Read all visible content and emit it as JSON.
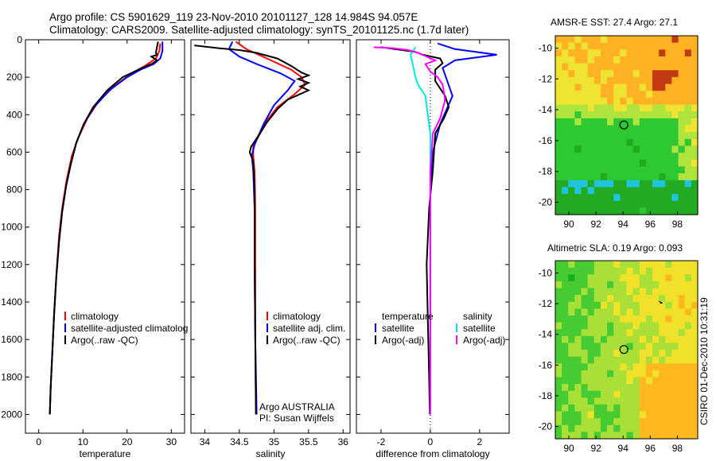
{
  "header": {
    "line1": "Argo profile: CS 5901629_119 23-Nov-2010 20101127_128 14.984S 94.057E",
    "line2": "Climatology: CARS2009. Satellite-adjusted climatology: synTS_20101125.nc (1.7d later)"
  },
  "footer": {
    "credit": "CSIRO 01-Dec-2010 10:31:19"
  },
  "colors": {
    "climatology": "#ff0000",
    "satellite": "#0000ff",
    "argo": "#000000",
    "argo_adj": "#ff00ff",
    "sat_diff": "#00e5e5"
  },
  "chart_data": [
    {
      "type": "line",
      "xlabel": "temperature",
      "ylabel": "",
      "xlim": [
        -3,
        33
      ],
      "ylim": [
        2100,
        0
      ],
      "xticks": [
        0,
        10,
        20,
        30
      ],
      "yticks": [
        0,
        200,
        400,
        600,
        800,
        1000,
        1200,
        1400,
        1600,
        1800,
        2000
      ],
      "legend": {
        "position": "lower-right",
        "entries": [
          {
            "label": "climatology",
            "color": "#ff0000"
          },
          {
            "label": "satellite-adjusted climatolog",
            "color": "#0000ff"
          },
          {
            "label": "Argo(..raw -QC)",
            "color": "#000000"
          }
        ]
      },
      "series": [
        {
          "color": "#ff0000",
          "points": [
            [
              27.5,
              20
            ],
            [
              27.3,
              60
            ],
            [
              26.5,
              100
            ],
            [
              24,
              140
            ],
            [
              21,
              180
            ],
            [
              17,
              250
            ],
            [
              13.5,
              330
            ],
            [
              11,
              420
            ],
            [
              9,
              520
            ],
            [
              7.5,
              620
            ],
            [
              6.3,
              750
            ],
            [
              5.3,
              900
            ],
            [
              4.6,
              1050
            ],
            [
              4,
              1250
            ],
            [
              3.5,
              1450
            ],
            [
              3.1,
              1650
            ],
            [
              2.7,
              1850
            ],
            [
              2.5,
              2000
            ]
          ]
        },
        {
          "color": "#0000ff",
          "points": [
            [
              28,
              10
            ],
            [
              28,
              60
            ],
            [
              27.5,
              100
            ],
            [
              26,
              130
            ],
            [
              23,
              160
            ],
            [
              20,
              200
            ],
            [
              16,
              270
            ],
            [
              12.5,
              360
            ],
            [
              10.2,
              450
            ],
            [
              8.5,
              550
            ],
            [
              7.3,
              660
            ],
            [
              6.2,
              780
            ],
            [
              5.3,
              920
            ],
            [
              4.6,
              1080
            ],
            [
              4,
              1260
            ],
            [
              3.5,
              1460
            ],
            [
              3.1,
              1660
            ],
            [
              2.7,
              1860
            ],
            [
              2.5,
              2000
            ]
          ]
        },
        {
          "color": "#000000",
          "points": [
            [
              27,
              10
            ],
            [
              26.5,
              70
            ],
            [
              26.8,
              80
            ],
            [
              25.5,
              90
            ],
            [
              26.8,
              110
            ],
            [
              25.5,
              130
            ],
            [
              23,
              155
            ],
            [
              19,
              200
            ],
            [
              15.5,
              270
            ],
            [
              12.3,
              360
            ],
            [
              10.2,
              450
            ],
            [
              8.5,
              550
            ],
            [
              7.3,
              660
            ],
            [
              6.2,
              780
            ],
            [
              5.3,
              920
            ],
            [
              4.6,
              1080
            ],
            [
              4,
              1260
            ],
            [
              3.5,
              1460
            ],
            [
              3.1,
              1660
            ],
            [
              2.7,
              1860
            ],
            [
              2.5,
              2000
            ]
          ]
        }
      ]
    },
    {
      "type": "line",
      "xlabel": "salinity",
      "xlim": [
        33.8,
        36.1
      ],
      "ylim": [
        2100,
        0
      ],
      "xticks": [
        34,
        34.5,
        35,
        35.5,
        36
      ],
      "legend": {
        "position": "lower-right",
        "entries": [
          {
            "label": "climatology",
            "color": "#ff0000"
          },
          {
            "label": "satellite adj. clim.",
            "color": "#0000ff"
          },
          {
            "label": "Argo(..raw -QC)",
            "color": "#000000"
          }
        ]
      },
      "annotation": [
        "Argo AUSTRALIA",
        "PI: Susan Wijffels"
      ],
      "series": [
        {
          "color": "#ff0000",
          "points": [
            [
              34.45,
              10
            ],
            [
              34.6,
              50
            ],
            [
              34.9,
              100
            ],
            [
              35.25,
              160
            ],
            [
              35.4,
              200
            ],
            [
              35.45,
              240
            ],
            [
              35.3,
              290
            ],
            [
              35.05,
              360
            ],
            [
              34.9,
              430
            ],
            [
              34.8,
              500
            ],
            [
              34.7,
              570
            ],
            [
              34.7,
              620
            ],
            [
              34.72,
              700
            ],
            [
              34.73,
              900
            ],
            [
              34.73,
              1200
            ],
            [
              34.73,
              1600
            ],
            [
              34.74,
              2000
            ]
          ]
        },
        {
          "color": "#0000ff",
          "points": [
            [
              34.4,
              10
            ],
            [
              34.35,
              50
            ],
            [
              34.5,
              90
            ],
            [
              34.75,
              130
            ],
            [
              35.1,
              180
            ],
            [
              35.3,
              220
            ],
            [
              35.2,
              270
            ],
            [
              35.0,
              350
            ],
            [
              34.85,
              450
            ],
            [
              34.72,
              560
            ],
            [
              34.68,
              620
            ],
            [
              34.7,
              700
            ],
            [
              34.72,
              900
            ],
            [
              34.72,
              1200
            ],
            [
              34.73,
              1600
            ],
            [
              34.75,
              2000
            ]
          ]
        },
        {
          "color": "#000000",
          "points": [
            [
              33.85,
              30
            ],
            [
              34.2,
              45
            ],
            [
              34.5,
              55
            ],
            [
              34.75,
              70
            ],
            [
              35.05,
              100
            ],
            [
              35.25,
              140
            ],
            [
              35.4,
              175
            ],
            [
              35.5,
              190
            ],
            [
              35.35,
              210
            ],
            [
              35.5,
              230
            ],
            [
              35.38,
              250
            ],
            [
              35.5,
              270
            ],
            [
              35.2,
              320
            ],
            [
              35.05,
              370
            ],
            [
              34.9,
              440
            ],
            [
              34.78,
              510
            ],
            [
              34.67,
              570
            ],
            [
              34.65,
              600
            ],
            [
              34.7,
              650
            ],
            [
              34.72,
              800
            ],
            [
              34.72,
              1200
            ],
            [
              34.73,
              1600
            ],
            [
              34.74,
              2000
            ]
          ]
        }
      ]
    },
    {
      "type": "line",
      "xlabel": "difference from climatology",
      "xlim": [
        -3,
        3.2
      ],
      "ylim": [
        2100,
        0
      ],
      "xticks": [
        -2,
        0,
        2
      ],
      "legend": {
        "position": "lower",
        "entries": [
          {
            "label": "temperature",
            "color": ""
          },
          {
            "label": "satellite",
            "color": "#0000ff"
          },
          {
            "label": "Argo(-adj)",
            "color": "#000000"
          },
          {
            "label": "salinity",
            "color": ""
          },
          {
            "label": "satellite",
            "color": "#00e5e5"
          },
          {
            "label": "Argo(-adj)",
            "color": "#ff00ff"
          }
        ]
      },
      "series": [
        {
          "color": "#0000ff",
          "points": [
            [
              0.3,
              20
            ],
            [
              1,
              50
            ],
            [
              2.7,
              80
            ],
            [
              1,
              110
            ],
            [
              0.5,
              150
            ],
            [
              0.9,
              300
            ],
            [
              0.4,
              450
            ],
            [
              0.1,
              600
            ],
            [
              0,
              800
            ],
            [
              0,
              2000
            ]
          ]
        },
        {
          "color": "#000000",
          "points": [
            [
              -2,
              40
            ],
            [
              -0.6,
              65
            ],
            [
              -0.3,
              80
            ],
            [
              0.4,
              100
            ],
            [
              0.5,
              125
            ],
            [
              0.2,
              160
            ],
            [
              0.2,
              220
            ],
            [
              0.6,
              300
            ],
            [
              0.75,
              360
            ],
            [
              0.55,
              420
            ],
            [
              0.2,
              500
            ],
            [
              0.15,
              600
            ],
            [
              0.1,
              700
            ],
            [
              -0.05,
              900
            ],
            [
              -0.15,
              1200
            ],
            [
              -0.1,
              1500
            ],
            [
              -0.05,
              1800
            ],
            [
              -0.02,
              2000
            ]
          ]
        },
        {
          "color": "#00e5e5",
          "points": [
            [
              -0.6,
              40
            ],
            [
              -0.8,
              80
            ],
            [
              -0.7,
              140
            ],
            [
              -0.6,
              200
            ],
            [
              -0.5,
              240
            ],
            [
              -0.2,
              300
            ],
            [
              -0.1,
              400
            ],
            [
              0,
              500
            ],
            [
              0,
              800
            ],
            [
              0,
              2000
            ]
          ]
        },
        {
          "color": "#ff00ff",
          "points": [
            [
              -2.3,
              40
            ],
            [
              -1.5,
              45
            ],
            [
              -0.9,
              55
            ],
            [
              -0.5,
              70
            ],
            [
              0.2,
              110
            ],
            [
              -0.2,
              130
            ],
            [
              0,
              170
            ],
            [
              0.3,
              200
            ],
            [
              0.5,
              240
            ],
            [
              0.6,
              320
            ],
            [
              0.4,
              420
            ],
            [
              0.1,
              500
            ],
            [
              0.05,
              600
            ],
            [
              0,
              700
            ],
            [
              0,
              2000
            ]
          ]
        }
      ]
    }
  ],
  "maps": [
    {
      "title": "AMSR-E SST: 27.4 Argo: 27.1",
      "xticks": [
        "90",
        "92",
        "94",
        "96",
        "98"
      ],
      "yticks": [
        "-10",
        "-12",
        "-14",
        "-16",
        "-18",
        "-20"
      ],
      "colorscale": [
        "#2f6fff",
        "#20c4e0",
        "#22aa22",
        "#2ec832",
        "#aee43c",
        "#f0e432",
        "#ffb224",
        "#c23a12"
      ]
    },
    {
      "title": "Altimetric SLA: 0.19 Argo: 0.093",
      "xticks": [
        "90",
        "92",
        "94",
        "96",
        "98"
      ],
      "yticks": [
        "-10",
        "-12",
        "-14",
        "-16",
        "-18",
        "-20"
      ],
      "colorscale": [
        "#18b020",
        "#46cc32",
        "#a8e038",
        "#f0e228",
        "#ffb81e"
      ]
    }
  ]
}
